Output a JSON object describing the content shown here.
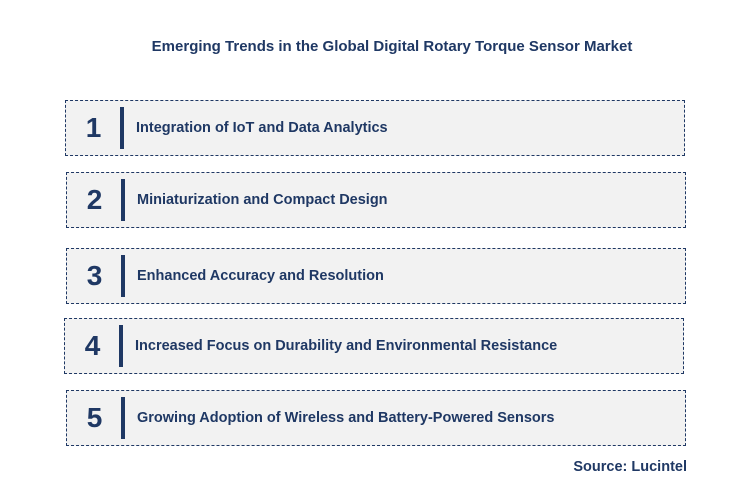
{
  "title": "Emerging Trends in the Global Digital Rotary Torque Sensor Market",
  "trends": [
    {
      "number": "1",
      "label": "Integration of IoT and Data Analytics"
    },
    {
      "number": "2",
      "label": "Miniaturization and Compact Design"
    },
    {
      "number": "3",
      "label": "Enhanced Accuracy  and Resolution"
    },
    {
      "number": "4",
      "label": "Increased Focus on Durability and Environmental Resistance"
    },
    {
      "number": "5",
      "label": "Growing Adoption of Wireless and Battery-Powered Sensors"
    }
  ],
  "source": "Source: Lucintel",
  "colors": {
    "text": "#1f3864",
    "box_fill": "#f2f2f2",
    "border": "#1f3864"
  }
}
